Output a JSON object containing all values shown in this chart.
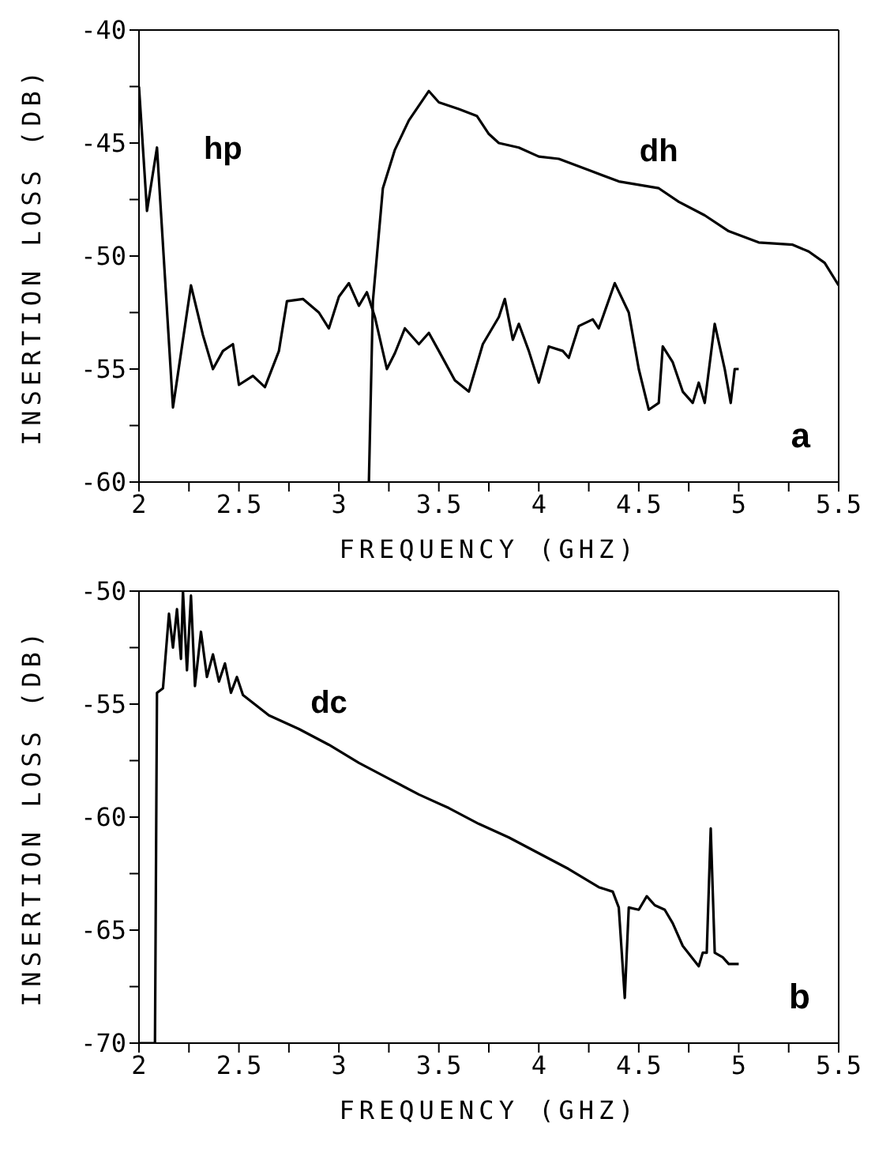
{
  "chart_data": [
    {
      "type": "line",
      "xlabel": "FREQUENCY (GHZ)",
      "ylabel": "INSERTION LOSS (DB)",
      "annotations": [
        "a"
      ],
      "xlim": [
        2,
        5.5
      ],
      "ylim": [
        -60,
        -40
      ],
      "xticks": [
        2,
        {
          "value": 2.25,
          "label": null
        },
        2.5,
        {
          "value": 2.75,
          "label": null
        },
        3,
        {
          "value": 3.25,
          "label": null
        },
        3.5,
        {
          "value": 3.75,
          "label": null
        },
        4,
        {
          "value": 4.25,
          "label": null
        },
        4.5,
        {
          "value": 4.75,
          "label": null
        },
        5,
        {
          "value": 5.25,
          "label": null
        },
        5.5
      ],
      "yticks": [
        -60,
        {
          "value": -57.5,
          "label": null
        },
        -55,
        {
          "value": -52.5,
          "label": null
        },
        -50,
        {
          "value": -47.5,
          "label": null
        },
        -45,
        {
          "value": -42.5,
          "label": null
        },
        -40
      ],
      "grid": false,
      "marker": "none",
      "line_style": "solid",
      "series": [
        {
          "name": "hp",
          "color": "#000000",
          "x": [
            2.0,
            2.04,
            2.09,
            2.17,
            2.26,
            2.32,
            2.37,
            2.42,
            2.47,
            2.5,
            2.57,
            2.63,
            2.7,
            2.74,
            2.82,
            2.9,
            2.95,
            3.0,
            3.05,
            3.1,
            3.14,
            3.18,
            3.24,
            3.28,
            3.33,
            3.4,
            3.45,
            3.5,
            3.58,
            3.65,
            3.72,
            3.8,
            3.83,
            3.87,
            3.9,
            3.95,
            4.0,
            4.05,
            4.12,
            4.15,
            4.2,
            4.27,
            4.3,
            4.38,
            4.45,
            4.5,
            4.55,
            4.6,
            4.62,
            4.67,
            4.72,
            4.77,
            4.8,
            4.83,
            4.88,
            4.93,
            4.96,
            4.98,
            5.0
          ],
          "values": [
            -42.5,
            -48,
            -45.2,
            -56.7,
            -51.3,
            -53.5,
            -55,
            -54.2,
            -53.9,
            -55.7,
            -55.3,
            -55.8,
            -54.2,
            -52,
            -51.9,
            -52.5,
            -53.2,
            -51.8,
            -51.2,
            -52.2,
            -51.6,
            -52.7,
            -55,
            -54.3,
            -53.2,
            -53.9,
            -53.4,
            -54.2,
            -55.5,
            -56,
            -53.9,
            -52.7,
            -51.9,
            -53.7,
            -53,
            -54.2,
            -55.6,
            -54,
            -54.2,
            -54.5,
            -53.1,
            -52.8,
            -53.2,
            -51.2,
            -52.5,
            -55,
            -56.8,
            -56.5,
            -54,
            -54.7,
            -56,
            -56.5,
            -55.6,
            -56.5,
            -53,
            -55,
            -56.5,
            -55,
            -55
          ]
        },
        {
          "name": "dh",
          "color": "#000000",
          "x": [
            3.15,
            3.17,
            3.22,
            3.28,
            3.35,
            3.45,
            3.5,
            3.6,
            3.69,
            3.75,
            3.8,
            3.9,
            4.0,
            4.1,
            4.25,
            4.4,
            4.6,
            4.7,
            4.83,
            4.95,
            5.1,
            5.27,
            5.35,
            5.43,
            5.5
          ],
          "values": [
            -60,
            -52,
            -47,
            -45.3,
            -44,
            -42.7,
            -43.2,
            -43.5,
            -43.8,
            -44.6,
            -45,
            -45.2,
            -45.6,
            -45.7,
            -46.2,
            -46.7,
            -47,
            -47.6,
            -48.2,
            -48.9,
            -49.4,
            -49.5,
            -49.8,
            -50.3,
            -51.3
          ]
        }
      ]
    },
    {
      "type": "line",
      "xlabel": "FREQUENCY (GHZ)",
      "ylabel": "INSERTION LOSS (DB)",
      "annotations": [
        "b"
      ],
      "xlim": [
        2,
        5.5
      ],
      "ylim": [
        -70,
        -50
      ],
      "xticks": [
        2,
        {
          "value": 2.25,
          "label": null
        },
        2.5,
        {
          "value": 2.75,
          "label": null
        },
        3,
        {
          "value": 3.25,
          "label": null
        },
        3.5,
        {
          "value": 3.75,
          "label": null
        },
        4,
        {
          "value": 4.25,
          "label": null
        },
        4.5,
        {
          "value": 4.75,
          "label": null
        },
        5,
        {
          "value": 5.25,
          "label": null
        },
        5.5
      ],
      "yticks": [
        -70,
        {
          "value": -67.5,
          "label": null
        },
        -65,
        {
          "value": -62.5,
          "label": null
        },
        -60,
        {
          "value": -57.5,
          "label": null
        },
        -55,
        {
          "value": -52.5,
          "label": null
        },
        -50
      ],
      "grid": false,
      "marker": "none",
      "line_style": "solid",
      "series": [
        {
          "name": "dc",
          "color": "#000000",
          "x": [
            2.0,
            2.08,
            2.09,
            2.12,
            2.15,
            2.17,
            2.19,
            2.21,
            2.22,
            2.24,
            2.26,
            2.28,
            2.31,
            2.34,
            2.37,
            2.4,
            2.43,
            2.46,
            2.49,
            2.52,
            2.65,
            2.8,
            2.95,
            3.1,
            3.25,
            3.4,
            3.55,
            3.7,
            3.85,
            4.0,
            4.15,
            4.3,
            4.37,
            4.4,
            4.43,
            4.45,
            4.5,
            4.54,
            4.58,
            4.63,
            4.67,
            4.72,
            4.8,
            4.82,
            4.84,
            4.86,
            4.88,
            4.92,
            4.95,
            5.0
          ],
          "values": [
            -70,
            -70,
            -54.5,
            -54.3,
            -51,
            -52.5,
            -50.8,
            -53,
            -50,
            -53.5,
            -50.2,
            -54.2,
            -51.8,
            -53.8,
            -52.8,
            -54,
            -53.2,
            -54.5,
            -53.8,
            -54.6,
            -55.5,
            -56.1,
            -56.8,
            -57.6,
            -58.3,
            -59,
            -59.6,
            -60.3,
            -60.9,
            -61.6,
            -62.3,
            -63.1,
            -63.3,
            -64,
            -68,
            -64,
            -64.1,
            -63.5,
            -63.9,
            -64.1,
            -64.7,
            -65.7,
            -66.6,
            -66,
            -66,
            -60.5,
            -66,
            -66.2,
            -66.5,
            -66.5
          ]
        }
      ]
    }
  ]
}
